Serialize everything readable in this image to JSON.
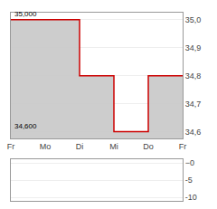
{
  "chart_data": [
    {
      "type": "line",
      "line_style": "step",
      "categories": [
        "Fr",
        "Mo",
        "Di",
        "Mi",
        "Do",
        "Fr"
      ],
      "values": [
        35.0,
        35.0,
        34.8,
        34.6,
        34.8,
        34.8
      ],
      "color": "#cc0000",
      "ylim": [
        34.575,
        35.025
      ],
      "yticks": [
        {
          "value": 34.6,
          "label": "34,6"
        },
        {
          "value": 34.7,
          "label": "34,7"
        },
        {
          "value": 34.8,
          "label": "34,8"
        },
        {
          "value": 34.9,
          "label": "34,9"
        },
        {
          "value": 35.0,
          "label": "35,0"
        }
      ],
      "grid": true,
      "annotations": [
        {
          "text": "35,000",
          "y": 35.0
        },
        {
          "text": "34,600",
          "y": 34.6
        }
      ]
    },
    {
      "type": "line",
      "xlim": [
        0,
        5
      ],
      "ylim": [
        -11,
        1
      ],
      "yticks": [
        -10,
        -5,
        {
          "value": 0,
          "label": "−0"
        }
      ],
      "grid": true,
      "tick_labels": "y"
    }
  ]
}
